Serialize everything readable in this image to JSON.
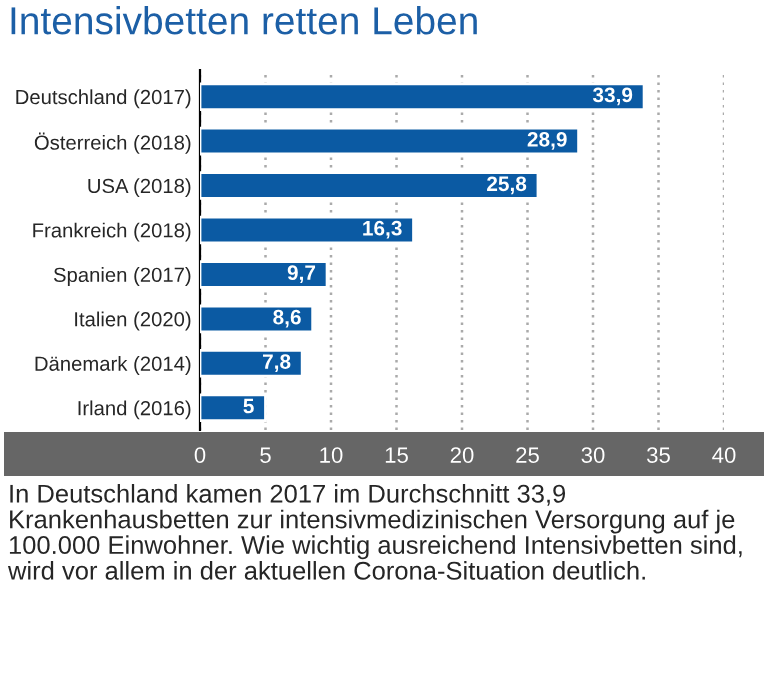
{
  "chart_data": {
    "type": "bar",
    "orientation": "horizontal",
    "title": "Intensivbetten retten Leben",
    "categories": [
      "Deutschland (2017)",
      "Österreich (2018)",
      "USA (2018)",
      "Frankreich (2018)",
      "Spanien (2017)",
      "Italien (2020)",
      "Dänemark (2014)",
      "Irland (2016)"
    ],
    "values": [
      33.9,
      28.9,
      25.8,
      16.3,
      9.7,
      8.6,
      7.8,
      5
    ],
    "value_labels": [
      "33,9",
      "28,9",
      "25,8",
      "16,3",
      "9,7",
      "8,6",
      "7,8",
      "5"
    ],
    "color": "#0b5aa3",
    "xlim": [
      0,
      40
    ],
    "xticks": [
      0,
      5,
      10,
      15,
      20,
      25,
      30,
      35,
      40
    ],
    "grid": "x",
    "annotations": [
      "In Deutschland kamen 2017 im Durchschnitt 33,9 Krankenhausbetten zur intensivmedizinischen Versorgung auf je 100.000 Einwohner. Wie wichtig ausreichend Intensivbetten sind, wird vor allem in der aktuellen Corona-Situation deutlich."
    ]
  }
}
